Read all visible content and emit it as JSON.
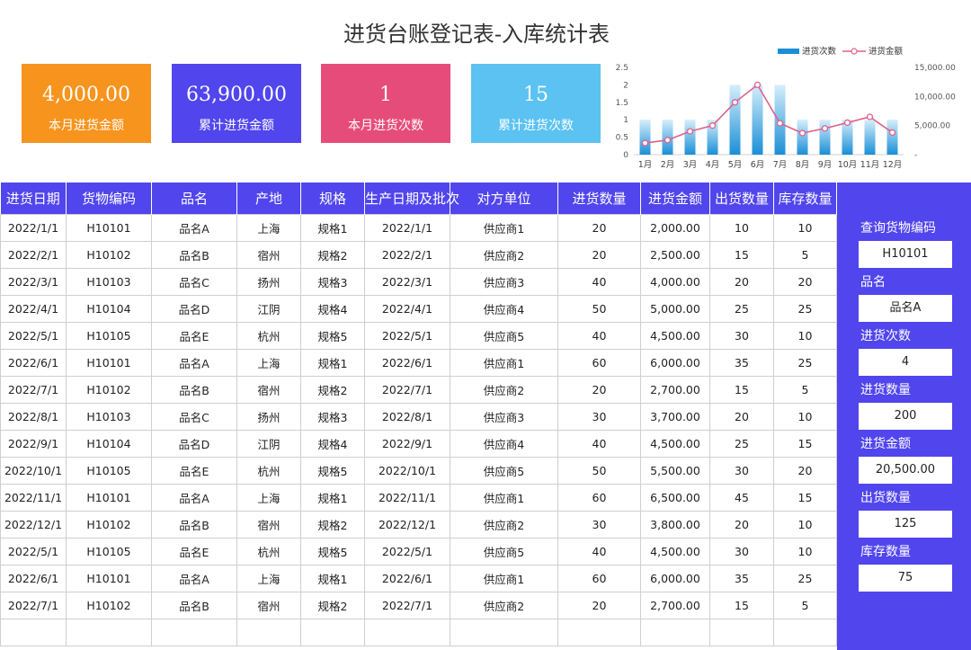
{
  "title": "进货台账登记表-入库统计表",
  "kpis": [
    {
      "value": "4,000.00",
      "label": "本月进货金额",
      "color": "#f7941e"
    },
    {
      "value": "63,900.00",
      "label": "累计进货金额",
      "color": "#5145ee"
    },
    {
      "value": "1",
      "label": "本月进货次数",
      "color": "#e64c7a"
    },
    {
      "value": "15",
      "label": "累计进货次数",
      "color": "#5bc2f2"
    }
  ],
  "chart_data": {
    "type": "bar",
    "categories": [
      "1月",
      "2月",
      "3月",
      "4月",
      "5月",
      "6月",
      "7月",
      "8月",
      "9月",
      "10月",
      "11月",
      "12月"
    ],
    "series": [
      {
        "name": "进货次数",
        "type": "bar",
        "axis": "left",
        "values": [
          1,
          1,
          1,
          1,
          2,
          2,
          2,
          1,
          1,
          1,
          1,
          1
        ]
      },
      {
        "name": "进货金额",
        "type": "line",
        "axis": "right",
        "values": [
          2000,
          2500,
          4000,
          5000,
          9000,
          12000,
          5400,
          3700,
          4500,
          5500,
          6500,
          3800
        ]
      }
    ],
    "left_axis": {
      "ticks": [
        "0",
        "0.5",
        "1",
        "1.5",
        "2",
        "2.5"
      ],
      "range": [
        0,
        2.5
      ]
    },
    "right_axis": {
      "ticks": [
        "-",
        "5,000.00",
        "10,000.00",
        "15,000.00"
      ],
      "range": [
        0,
        15000
      ]
    },
    "legend_position": "top-right",
    "colors": {
      "bar": "#1a8fd6",
      "line": "#e0608a"
    }
  },
  "table": {
    "headers": [
      "进货日期",
      "货物编码",
      "品名",
      "产地",
      "规格",
      "生产日期及批次",
      "对方单位",
      "进货数量",
      "进货金额",
      "出货数量",
      "库存数量"
    ],
    "rows": [
      [
        "2022/1/1",
        "H10101",
        "品名A",
        "上海",
        "规格1",
        "2022/1/1",
        "供应商1",
        "20",
        "2,000.00",
        "10",
        "10"
      ],
      [
        "2022/2/1",
        "H10102",
        "品名B",
        "宿州",
        "规格2",
        "2022/2/1",
        "供应商2",
        "20",
        "2,500.00",
        "15",
        "5"
      ],
      [
        "2022/3/1",
        "H10103",
        "品名C",
        "扬州",
        "规格3",
        "2022/3/1",
        "供应商3",
        "40",
        "4,000.00",
        "20",
        "20"
      ],
      [
        "2022/4/1",
        "H10104",
        "品名D",
        "江阴",
        "规格4",
        "2022/4/1",
        "供应商4",
        "50",
        "5,000.00",
        "25",
        "25"
      ],
      [
        "2022/5/1",
        "H10105",
        "品名E",
        "杭州",
        "规格5",
        "2022/5/1",
        "供应商5",
        "40",
        "4,500.00",
        "30",
        "10"
      ],
      [
        "2022/6/1",
        "H10101",
        "品名A",
        "上海",
        "规格1",
        "2022/6/1",
        "供应商1",
        "60",
        "6,000.00",
        "35",
        "25"
      ],
      [
        "2022/7/1",
        "H10102",
        "品名B",
        "宿州",
        "规格2",
        "2022/7/1",
        "供应商2",
        "20",
        "2,700.00",
        "15",
        "5"
      ],
      [
        "2022/8/1",
        "H10103",
        "品名C",
        "扬州",
        "规格3",
        "2022/8/1",
        "供应商3",
        "30",
        "3,700.00",
        "20",
        "10"
      ],
      [
        "2022/9/1",
        "H10104",
        "品名D",
        "江阴",
        "规格4",
        "2022/9/1",
        "供应商4",
        "40",
        "4,500.00",
        "25",
        "15"
      ],
      [
        "2022/10/1",
        "H10105",
        "品名E",
        "杭州",
        "规格5",
        "2022/10/1",
        "供应商5",
        "50",
        "5,500.00",
        "30",
        "20"
      ],
      [
        "2022/11/1",
        "H10101",
        "品名A",
        "上海",
        "规格1",
        "2022/11/1",
        "供应商1",
        "60",
        "6,500.00",
        "45",
        "15"
      ],
      [
        "2022/12/1",
        "H10102",
        "品名B",
        "宿州",
        "规格2",
        "2022/12/1",
        "供应商2",
        "30",
        "3,800.00",
        "20",
        "10"
      ],
      [
        "2022/5/1",
        "H10105",
        "品名E",
        "杭州",
        "规格5",
        "2022/5/1",
        "供应商5",
        "40",
        "4,500.00",
        "30",
        "10"
      ],
      [
        "2022/6/1",
        "H10101",
        "品名A",
        "上海",
        "规格1",
        "2022/6/1",
        "供应商1",
        "60",
        "6,000.00",
        "35",
        "25"
      ],
      [
        "2022/7/1",
        "H10102",
        "品名B",
        "宿州",
        "规格2",
        "2022/7/1",
        "供应商2",
        "20",
        "2,700.00",
        "15",
        "5"
      ],
      [
        "",
        "",
        "",
        "",
        "",
        "",
        "",
        "",
        "",
        "",
        ""
      ]
    ]
  },
  "panel": {
    "fields": [
      {
        "label": "查询货物编码",
        "value": "H10101"
      },
      {
        "label": "品名",
        "value": "品名A"
      },
      {
        "label": "进货次数",
        "value": "4"
      },
      {
        "label": "进货数量",
        "value": "200"
      },
      {
        "label": "进货金额",
        "value": "20,500.00"
      },
      {
        "label": "出货数量",
        "value": "125"
      },
      {
        "label": "库存数量",
        "value": "75"
      }
    ]
  }
}
